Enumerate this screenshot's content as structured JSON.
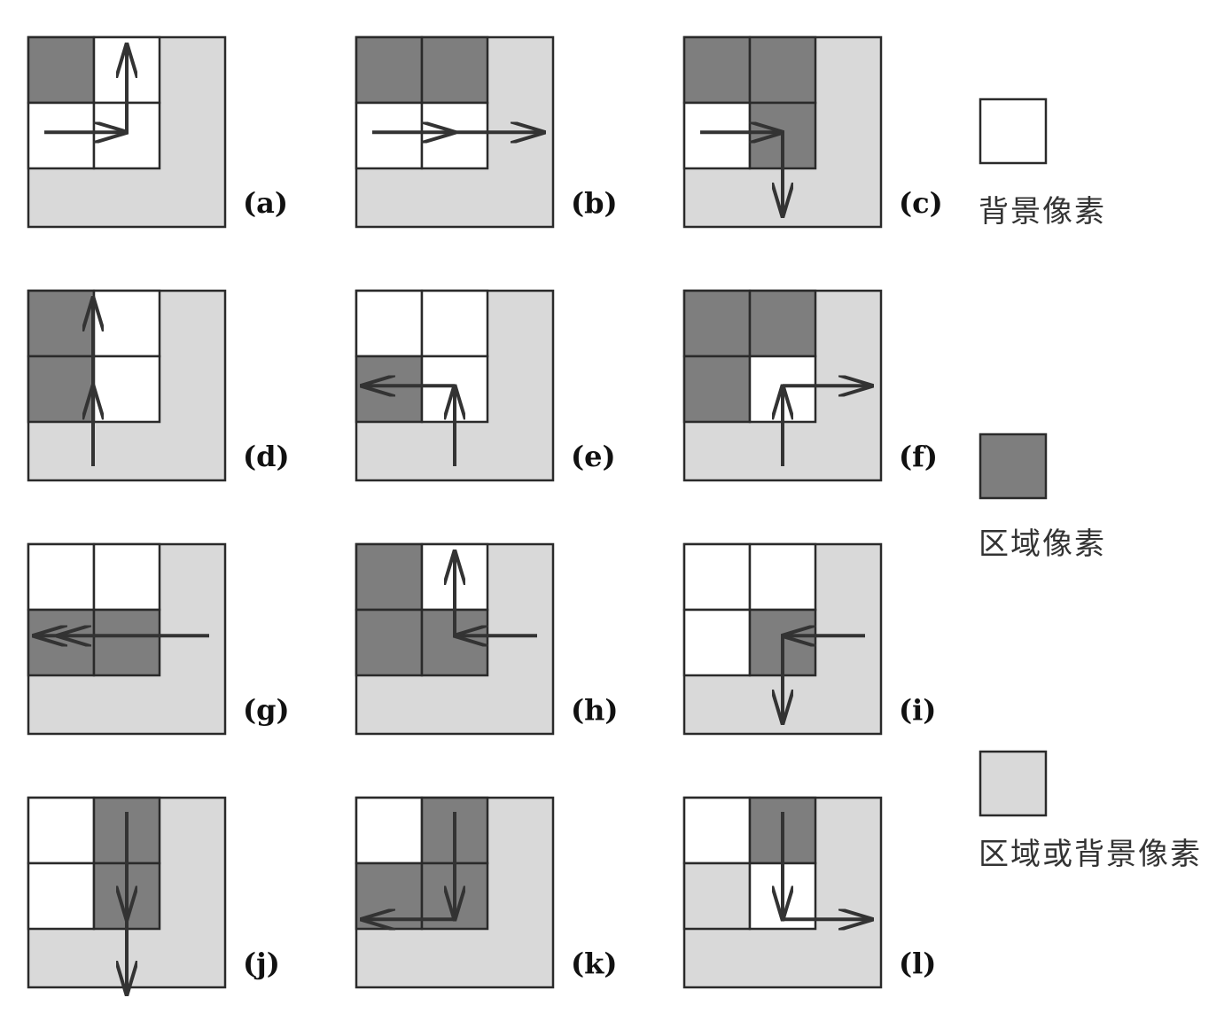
{
  "colors": {
    "white": "#ffffff",
    "dark": "#7e7e7e",
    "light": "#d9d9d9",
    "stroke": "#2a2a2a",
    "arrow": "#333333"
  },
  "legend": [
    {
      "label": "背景像素",
      "fill": "white"
    },
    {
      "label": "区域像素",
      "fill": "dark"
    },
    {
      "label": "区域或背景像素",
      "fill": "light"
    }
  ],
  "panels": [
    {
      "label": "(a)",
      "cells": {
        "tl": "dark",
        "tr": "white",
        "bl": "white",
        "br": "white"
      },
      "arrows": [
        {
          "from": "left-in",
          "turn": "up"
        }
      ]
    },
    {
      "label": "(b)",
      "cells": {
        "tl": "dark",
        "tr": "dark",
        "bl": "white",
        "br": "white"
      },
      "arrows": [
        {
          "from": "left-in",
          "turn": "right"
        }
      ]
    },
    {
      "label": "(c)",
      "cells": {
        "tl": "dark",
        "tr": "dark",
        "bl": "white",
        "br": "dark"
      },
      "arrows": [
        {
          "from": "left-in",
          "turn": "down"
        }
      ]
    },
    {
      "label": "(d)",
      "cells": {
        "tl": "dark",
        "tr": "white",
        "bl": "dark",
        "br": "white"
      },
      "arrows": [
        {
          "from": "bottom-in",
          "turn": "up"
        }
      ]
    },
    {
      "label": "(e)",
      "cells": {
        "tl": "white",
        "tr": "white",
        "bl": "dark",
        "br": "white"
      },
      "arrows": [
        {
          "from": "bottom-in",
          "turn": "left"
        }
      ]
    },
    {
      "label": "(f)",
      "cells": {
        "tl": "dark",
        "tr": "dark",
        "bl": "dark",
        "br": "white"
      },
      "arrows": [
        {
          "from": "bottom-in",
          "turn": "right"
        }
      ]
    },
    {
      "label": "(g)",
      "cells": {
        "tl": "white",
        "tr": "white",
        "bl": "dark",
        "br": "dark"
      },
      "arrows": [
        {
          "from": "right-in",
          "turn": "left"
        }
      ]
    },
    {
      "label": "(h)",
      "cells": {
        "tl": "dark",
        "tr": "white",
        "bl": "dark",
        "br": "dark"
      },
      "arrows": [
        {
          "from": "right-in",
          "turn": "up"
        }
      ]
    },
    {
      "label": "(i)",
      "cells": {
        "tl": "white",
        "tr": "white",
        "bl": "white",
        "br": "dark"
      },
      "arrows": [
        {
          "from": "right-in",
          "turn": "down"
        }
      ]
    },
    {
      "label": "(j)",
      "cells": {
        "tl": "white",
        "tr": "dark",
        "bl": "white",
        "br": "dark"
      },
      "arrows": [
        {
          "from": "top-in",
          "turn": "down"
        }
      ]
    },
    {
      "label": "(k)",
      "cells": {
        "tl": "white",
        "tr": "dark",
        "bl": "dark",
        "br": "dark"
      },
      "arrows": [
        {
          "from": "top-in",
          "turn": "left"
        }
      ]
    },
    {
      "label": "(l)",
      "cells": {
        "tl": "white",
        "tr": "dark",
        "bl": "light",
        "br": "white"
      },
      "arrows": [
        {
          "from": "top-in",
          "turn": "right"
        }
      ]
    }
  ]
}
